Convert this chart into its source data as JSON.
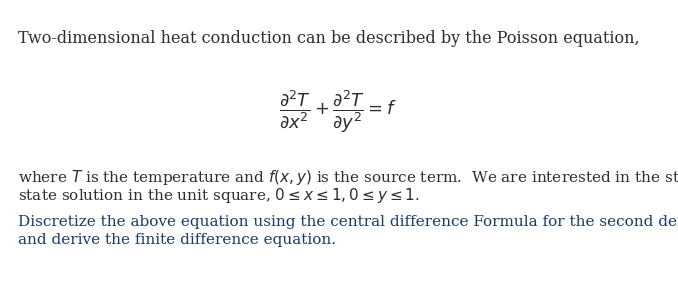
{
  "bg_color": "#ffffff",
  "fig_width": 6.78,
  "fig_height": 2.95,
  "dpi": 100,
  "line1_text": "Two-dimensional heat conduction can be described by the Poisson equation,",
  "line1_color": "#2d2d2d",
  "line1_fontsize": 11.5,
  "equation_color": "#2d2d2d",
  "equation_fontsize": 13,
  "where_text_line1": "where $T$ is the temperature and $f(x, y)$ is the source term.  We are interested in the steady",
  "where_text_line2": "state solution in the unit square, $0 \\leq x \\leq 1, 0 \\leq y \\leq 1$.",
  "where_color": "#2d2d2d",
  "where_fontsize": 11.0,
  "blue_line1": "Discretize the above equation using the central difference Formula for the second derivative",
  "blue_line2": "and derive the finite difference equation.",
  "blue_color": "#1a3a6b",
  "blue_fontsize": 11.0
}
